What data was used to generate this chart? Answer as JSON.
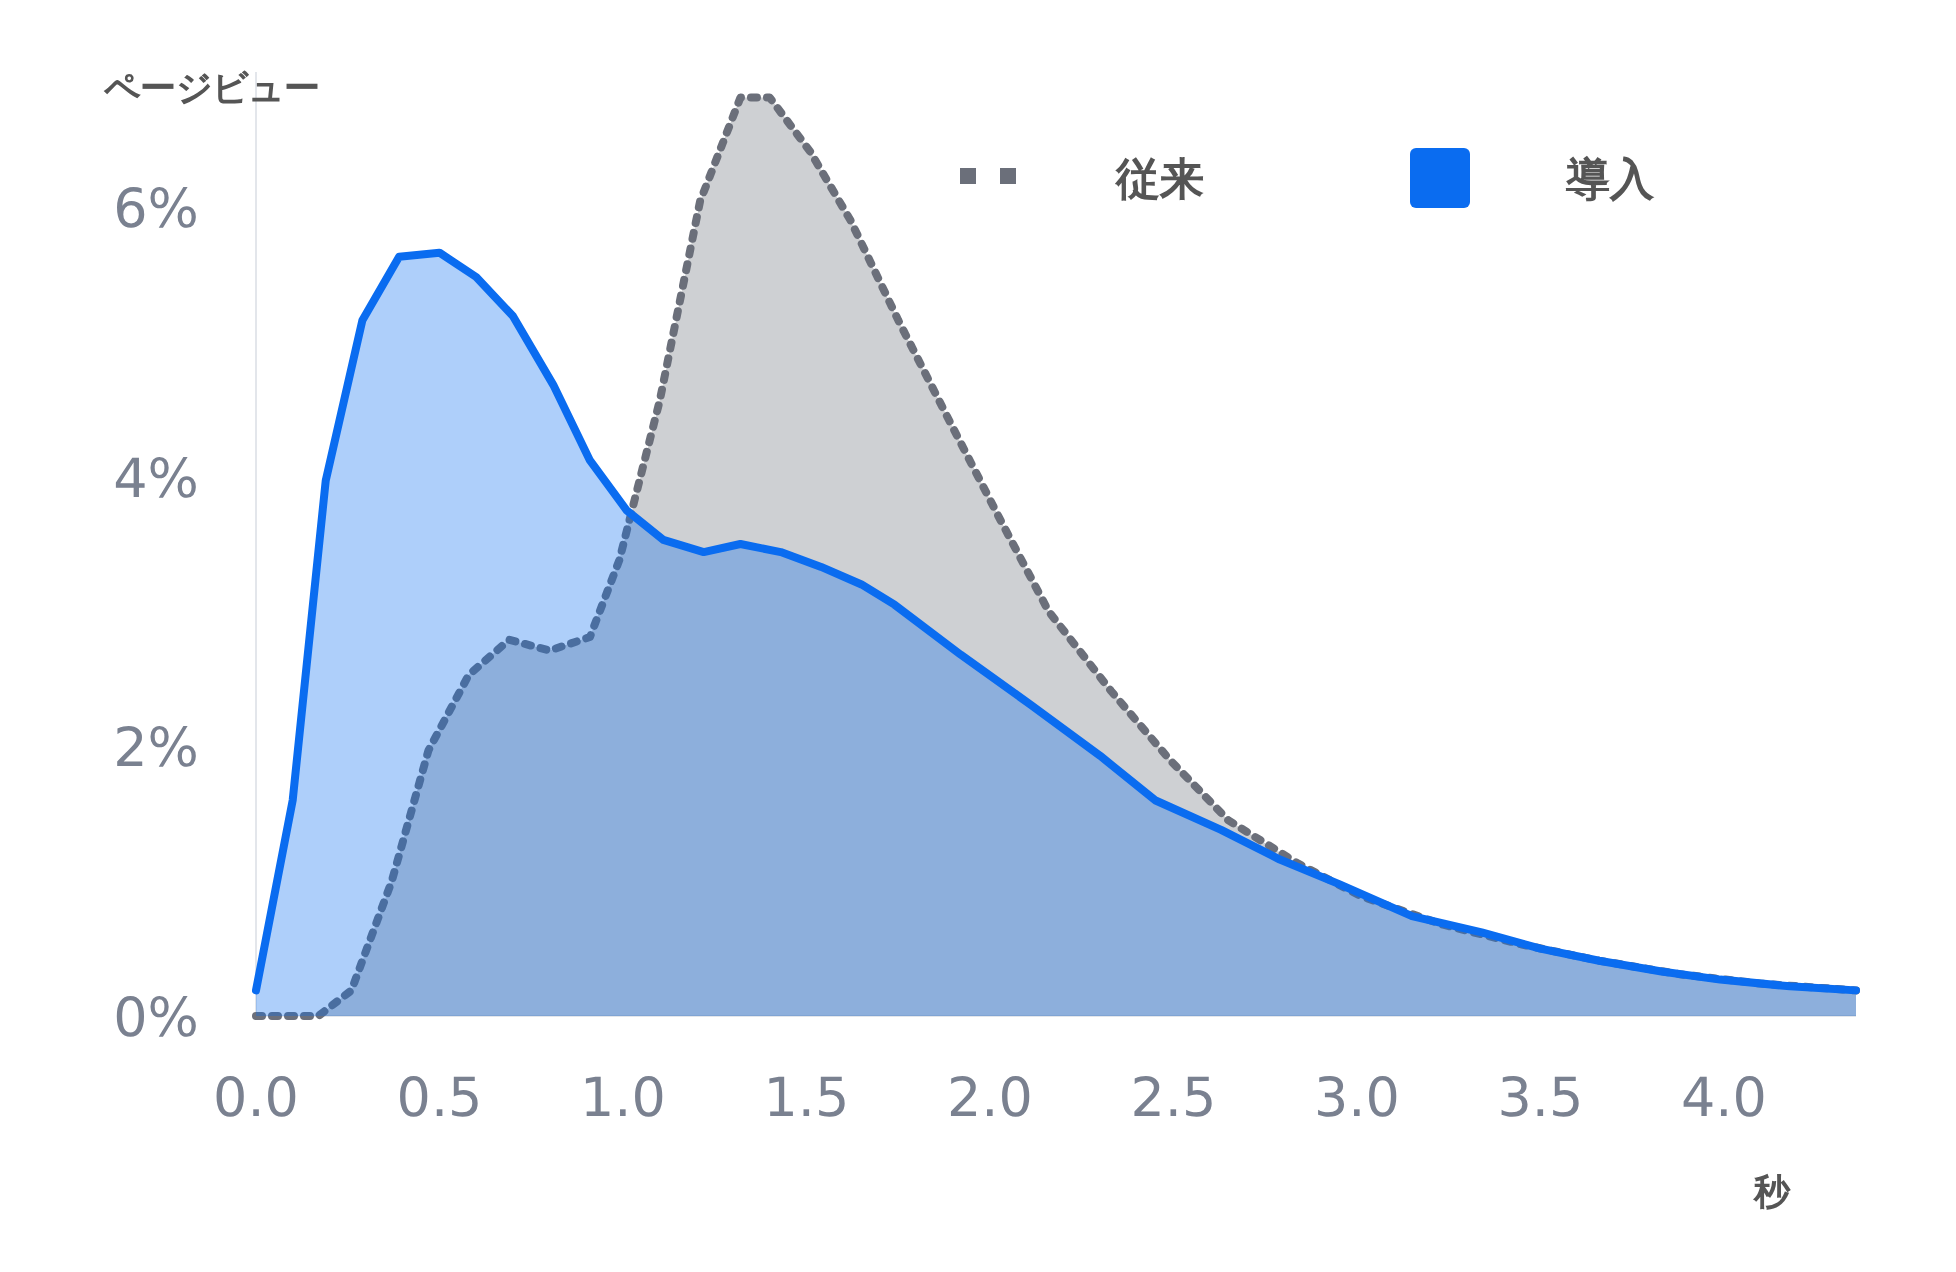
{
  "chart_data": {
    "type": "area",
    "ylabel": "ページビュー",
    "xlabel": "秒",
    "xlim": [
      0,
      4.36
    ],
    "ylim": [
      0,
      7
    ],
    "xticks": [
      {
        "value": 0,
        "label": "0.0"
      },
      {
        "value": 0.5,
        "label": "0.5"
      },
      {
        "value": 1,
        "label": "1.0"
      },
      {
        "value": 1.5,
        "label": "1.5"
      },
      {
        "value": 2,
        "label": "2.0"
      },
      {
        "value": 2.5,
        "label": "2.5"
      },
      {
        "value": 3,
        "label": "3.0"
      },
      {
        "value": 3.5,
        "label": "3.5"
      },
      {
        "value": 4,
        "label": "4.0"
      }
    ],
    "yticks": [
      {
        "value": 0,
        "label": "0%"
      },
      {
        "value": 2,
        "label": "2%"
      },
      {
        "value": 4,
        "label": "4%"
      },
      {
        "value": 6,
        "label": "6%"
      }
    ],
    "legend": "top right",
    "series": [
      {
        "name": "従来",
        "color": "#6b6f7a",
        "line_style": "dotted",
        "x": [
          0,
          0.17,
          0.26,
          0.37,
          0.47,
          0.58,
          0.69,
          0.8,
          0.91,
          0.99,
          1.1,
          1.21,
          1.32,
          1.4,
          1.51,
          1.62,
          1.75,
          1.89,
          2.03,
          2.16,
          2.33,
          2.49,
          2.65,
          2.84,
          3.01,
          3.23,
          3.45,
          3.66,
          3.88,
          4.1,
          4.36
        ],
        "values": [
          0,
          0,
          0.19,
          1.0,
          1.97,
          2.53,
          2.79,
          2.71,
          2.81,
          3.38,
          4.56,
          6.04,
          6.81,
          6.81,
          6.41,
          5.9,
          5.16,
          4.41,
          3.67,
          3.0,
          2.41,
          1.9,
          1.45,
          1.13,
          0.89,
          0.68,
          0.53,
          0.41,
          0.31,
          0.24,
          0.19
        ]
      },
      {
        "name": "導入",
        "color": "#0a6cf0",
        "line_style": "solid",
        "x": [
          0,
          0.1,
          0.19,
          0.29,
          0.39,
          0.5,
          0.6,
          0.7,
          0.81,
          0.91,
          1.01,
          1.11,
          1.22,
          1.32,
          1.43,
          1.54,
          1.65,
          1.74,
          1.92,
          2.11,
          2.3,
          2.45,
          2.63,
          2.79,
          2.95,
          3.15,
          3.34,
          3.5,
          3.66,
          3.83,
          3.99,
          4.18,
          4.36
        ],
        "values": [
          0.19,
          1.6,
          3.97,
          5.16,
          5.63,
          5.66,
          5.48,
          5.19,
          4.68,
          4.12,
          3.75,
          3.53,
          3.44,
          3.5,
          3.44,
          3.33,
          3.2,
          3.05,
          2.68,
          2.31,
          1.93,
          1.6,
          1.38,
          1.16,
          0.98,
          0.74,
          0.62,
          0.5,
          0.41,
          0.33,
          0.27,
          0.22,
          0.19
        ]
      }
    ]
  }
}
